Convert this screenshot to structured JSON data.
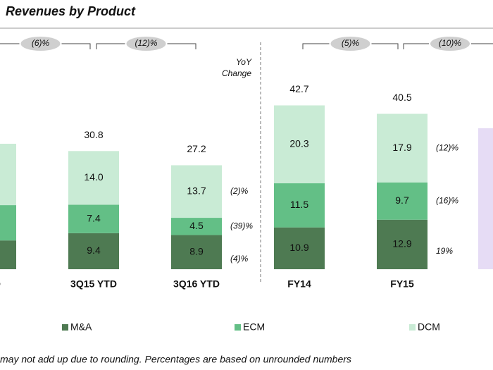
{
  "chart_data": {
    "type": "stacked_bar",
    "title": "Revenues by Product",
    "categories": [
      "YTD",
      "3Q15 YTD",
      "3Q16 YTD",
      "FY14",
      "FY15"
    ],
    "series": [
      {
        "name": "M&A",
        "color": "#4e7a52",
        "values": [
          7.5,
          9.4,
          8.9,
          10.9,
          12.9
        ],
        "value_labels": [
          null,
          "9.4",
          "8.9",
          "10.9",
          "12.9"
        ]
      },
      {
        "name": "ECM",
        "color": "#63bf86",
        "values": [
          9.2,
          7.4,
          4.5,
          11.5,
          9.7
        ],
        "value_labels": [
          null,
          "7.4",
          "4.5",
          "11.5",
          "9.7"
        ]
      },
      {
        "name": "DCM",
        "color": "#c9ebd5",
        "values": [
          16.0,
          14.0,
          13.7,
          20.3,
          17.9
        ],
        "value_labels": [
          null,
          "14.0",
          "13.7",
          "20.3",
          "17.9"
        ]
      }
    ],
    "totals": [
      null,
      30.8,
      27.2,
      42.7,
      40.5
    ],
    "ylim": [
      0,
      45
    ],
    "growth": [
      "(6)%",
      "(12)%",
      "(5)%",
      "(10)%"
    ],
    "yoy_header": [
      "YoY",
      "Change"
    ],
    "yoy": [
      {
        "category": 2,
        "labels": [
          "(4)%",
          "(39)%",
          "(2)%"
        ]
      },
      {
        "category": 4,
        "labels": [
          "19%",
          "(16)%",
          "(12)%"
        ]
      }
    ],
    "footnote": "may not add up due to rounding. Percentages are based on unrounded numbers"
  }
}
